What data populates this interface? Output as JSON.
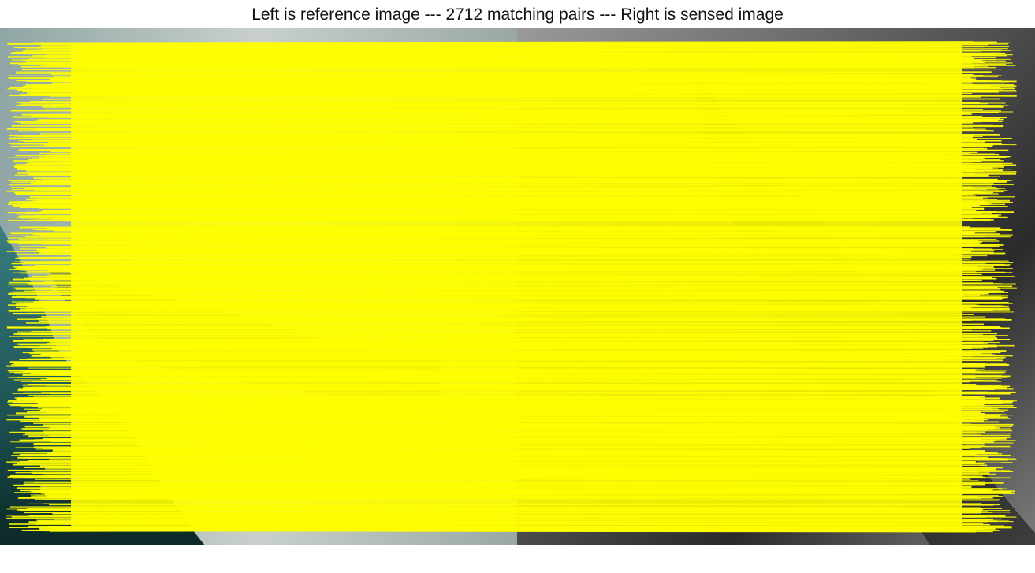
{
  "figure": {
    "title": "Left is reference image --- 2712 matching pairs --- Right is sensed image",
    "match_count": 2712,
    "line_color": "#ffff00"
  },
  "reference_image": {
    "description_colors": {
      "water_dark": "#0e2c2a",
      "water_teal": "#2f6e6f",
      "land_light": "#b8c4c2"
    }
  },
  "sensed_image": {
    "description_colors": {
      "terrain_dark": "#1a1a1a",
      "terrain_mid": "#7a7a7a",
      "terrain_light": "#d0d0d0"
    }
  }
}
